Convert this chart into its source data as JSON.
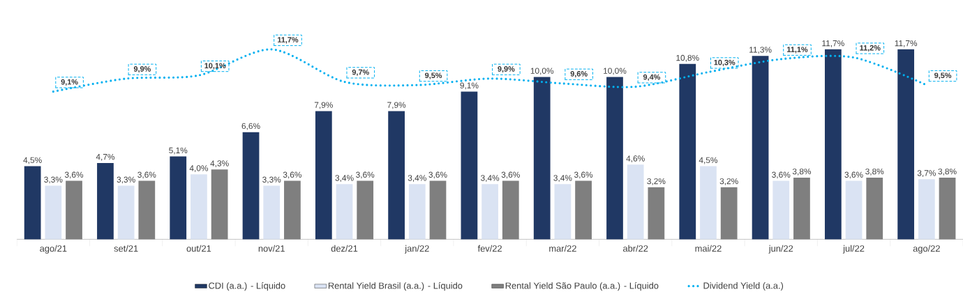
{
  "chart_data": {
    "type": "bar",
    "categories": [
      "ago/21",
      "set/21",
      "out/21",
      "nov/21",
      "dez/21",
      "jan/22",
      "fev/22",
      "mar/22",
      "abr/22",
      "mai/22",
      "jun/22",
      "jul/22",
      "ago/22"
    ],
    "series": [
      {
        "name": "CDI (a.a.) - Líquido",
        "color": "#203864",
        "values": [
          4.5,
          4.7,
          5.1,
          6.6,
          7.9,
          7.9,
          9.1,
          10.0,
          10.0,
          10.8,
          11.3,
          11.7,
          11.7
        ],
        "value_labels": [
          "4,5%",
          "4,7%",
          "5,1%",
          "6,6%",
          "7,9%",
          "7,9%",
          "9,1%",
          "10,0%",
          "10,0%",
          "10,8%",
          "11,3%",
          "11,7%",
          "11,7%"
        ]
      },
      {
        "name": "Rental Yield Brasil (a.a.) - Líquido",
        "color": "#dae3f3",
        "values": [
          3.3,
          3.3,
          4.0,
          3.3,
          3.4,
          3.4,
          3.4,
          3.4,
          4.6,
          4.5,
          3.6,
          3.6,
          3.7
        ],
        "value_labels": [
          "3,3%",
          "3,3%",
          "4,0%",
          "3,3%",
          "3,4%",
          "3,4%",
          "3,4%",
          "3,4%",
          "4,6%",
          "4,5%",
          "3,6%",
          "3,6%",
          "3,7%"
        ]
      },
      {
        "name": "Rental Yield São Paulo (a.a.) - Líquido",
        "color": "#7f7f7f",
        "values": [
          3.6,
          3.6,
          4.3,
          3.6,
          3.6,
          3.6,
          3.6,
          3.6,
          3.2,
          3.2,
          3.8,
          3.8,
          3.8
        ],
        "value_labels": [
          "3,6%",
          "3,6%",
          "4,3%",
          "3,6%",
          "3,6%",
          "3,6%",
          "3,6%",
          "3,6%",
          "3,2%",
          "3,2%",
          "3,8%",
          "3,8%",
          "3,8%"
        ]
      },
      {
        "name": "Dividend Yield (a.a.)",
        "type": "line",
        "line_style": "dotted",
        "color": "#00b0f0",
        "values": [
          9.1,
          9.9,
          10.1,
          11.7,
          9.7,
          9.5,
          9.9,
          9.6,
          9.4,
          10.3,
          11.1,
          11.2,
          9.5
        ],
        "value_labels": [
          "9,1%",
          "9,9%",
          "10,1%",
          "11,7%",
          "9,7%",
          "9,5%",
          "9,9%",
          "9,6%",
          "9,4%",
          "10,3%",
          "11,1%",
          "11,2%",
          "9,5%"
        ]
      }
    ],
    "tick_labels": "x",
    "legend": "bottom"
  }
}
